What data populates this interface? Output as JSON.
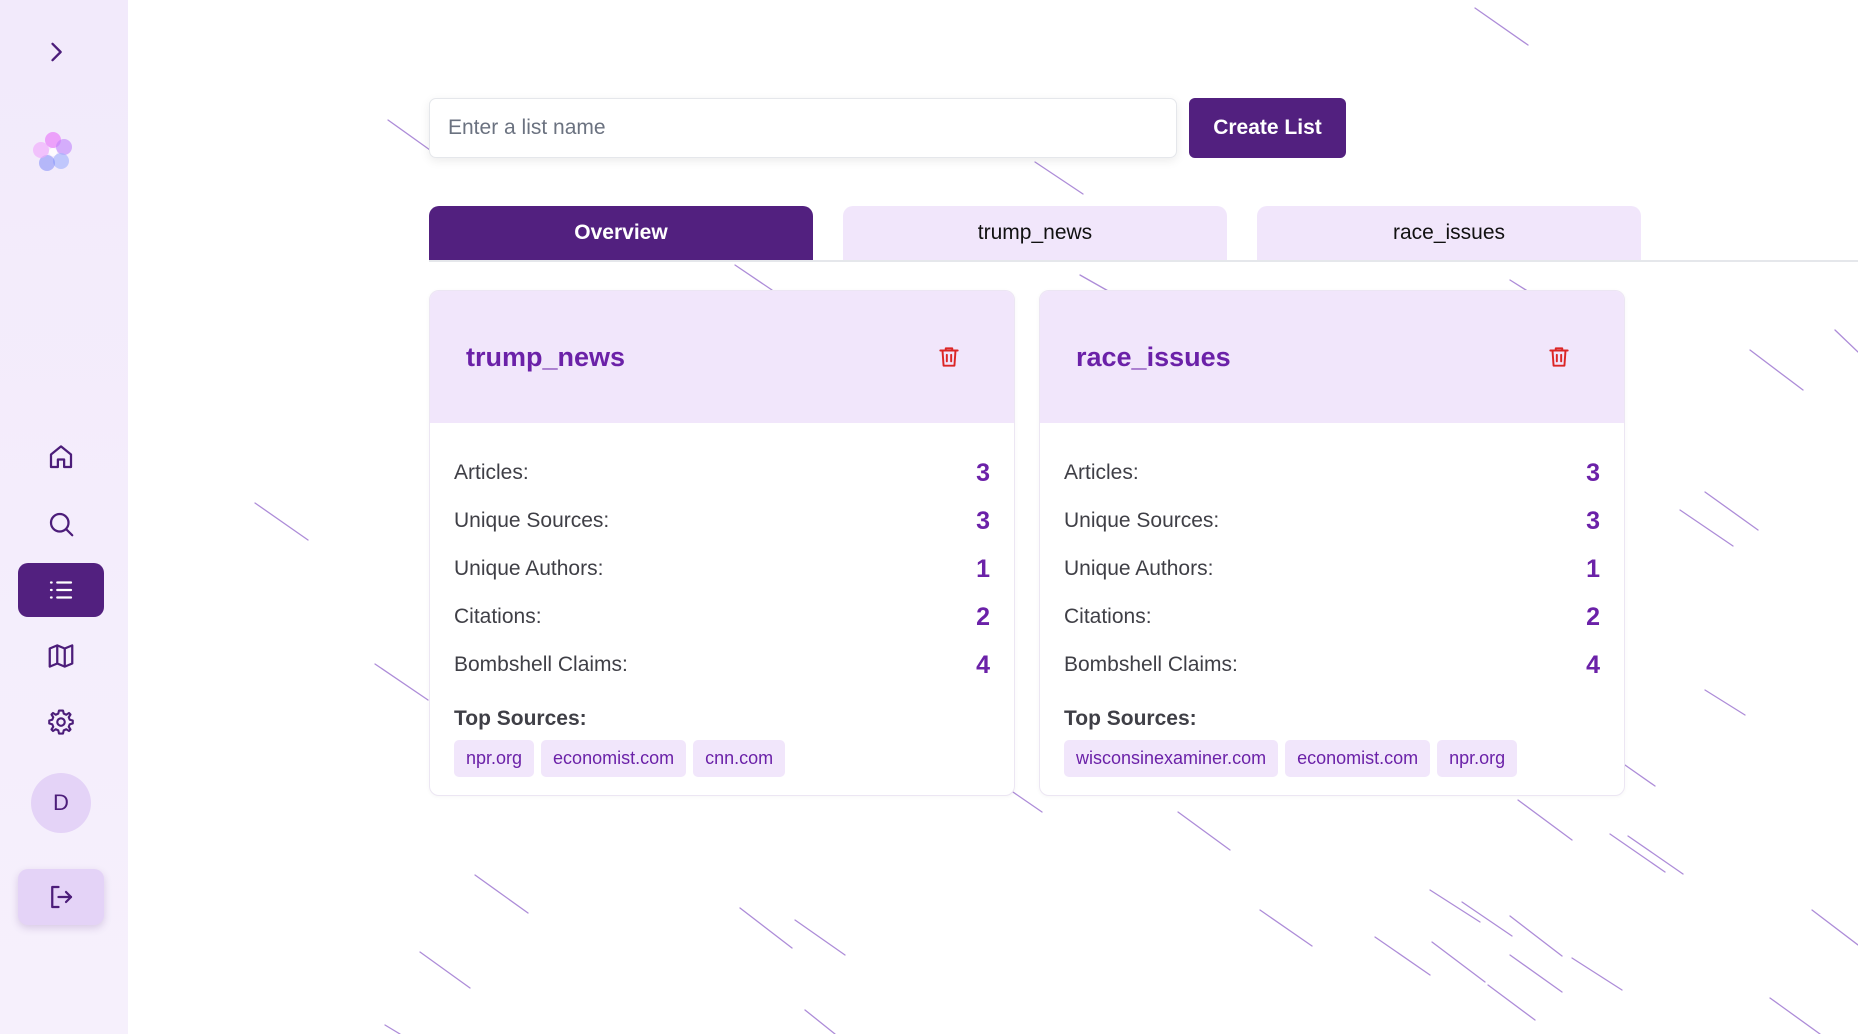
{
  "colors": {
    "accent": "#52207f",
    "accent_text": "#6b21a8",
    "tint": "#f1e6fb",
    "danger": "#dc2626"
  },
  "sidebar": {
    "expand_icon": "chevron-right-icon",
    "logo_icon": "flower-logo-icon",
    "nav": [
      {
        "icon": "home-icon",
        "active": false
      },
      {
        "icon": "search-icon",
        "active": false
      },
      {
        "icon": "list-icon",
        "active": true
      },
      {
        "icon": "map-icon",
        "active": false
      },
      {
        "icon": "gear-icon",
        "active": false
      }
    ],
    "avatar_initial": "D",
    "logout_icon": "logout-icon"
  },
  "create": {
    "placeholder": "Enter a list name",
    "value": "",
    "button_label": "Create List"
  },
  "tabs": [
    {
      "label": "Overview",
      "active": true
    },
    {
      "label": "trump_news",
      "active": false
    },
    {
      "label": "race_issues",
      "active": false
    }
  ],
  "cards": [
    {
      "title": "trump_news",
      "stats": [
        {
          "label": "Articles:",
          "value": "3"
        },
        {
          "label": "Unique Sources:",
          "value": "3"
        },
        {
          "label": "Unique Authors:",
          "value": "1"
        },
        {
          "label": "Citations:",
          "value": "2"
        },
        {
          "label": "Bombshell Claims:",
          "value": "4"
        }
      ],
      "top_sources_label": "Top Sources:",
      "top_sources": [
        "npr.org",
        "economist.com",
        "cnn.com"
      ]
    },
    {
      "title": "race_issues",
      "stats": [
        {
          "label": "Articles:",
          "value": "3"
        },
        {
          "label": "Unique Sources:",
          "value": "3"
        },
        {
          "label": "Unique Authors:",
          "value": "1"
        },
        {
          "label": "Citations:",
          "value": "2"
        },
        {
          "label": "Bombshell Claims:",
          "value": "4"
        }
      ],
      "top_sources_label": "Top Sources:",
      "top_sources": [
        "wisconsinexaminer.com",
        "economist.com",
        "npr.org"
      ]
    }
  ]
}
